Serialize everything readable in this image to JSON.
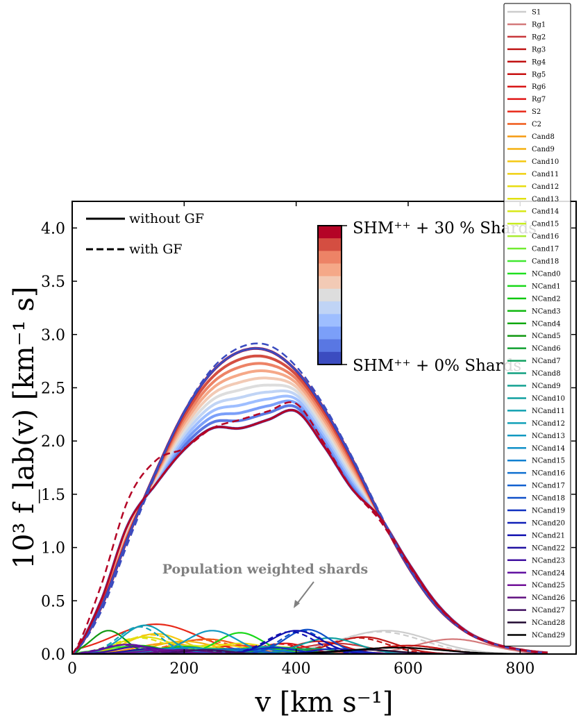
{
  "chart_data": {
    "type": "line",
    "xlabel": "v [km s⁻¹]",
    "ylabel": "10³ f_lab(v) [km⁻¹ s]",
    "xlim": [
      0,
      900
    ],
    "ylim": [
      0,
      4.25
    ],
    "xticks": [
      "0",
      "200",
      "400",
      "600",
      "800"
    ],
    "yticks": [
      "0.0",
      "0.5",
      "1.0",
      "1.5",
      "2.0",
      "2.5",
      "3.0",
      "3.5",
      "4.0"
    ],
    "linestyle_legend": [
      "without GF",
      "with GF"
    ],
    "colorbar": {
      "top_label": "SHM⁺⁺ + 30 % Shards",
      "bottom_label": "SHM⁺⁺ + 0% Shards",
      "colors": [
        "#b40426",
        "#d44e41",
        "#ed8366",
        "#f5a888",
        "#f2cab5",
        "#dddddd",
        "#c0d4f5",
        "#9ebeff",
        "#7b9ff9",
        "#5977e3",
        "#3b4cc0"
      ]
    },
    "annotation": "Population weighted shards",
    "shm_profile": {
      "x": [
        0,
        50,
        100,
        150,
        200,
        250,
        300,
        350,
        400,
        450,
        500,
        550,
        600,
        650,
        700,
        750,
        800,
        850
      ],
      "values_0pct": [
        0,
        0.42,
        1.1,
        1.72,
        2.27,
        2.65,
        2.84,
        2.85,
        2.66,
        2.3,
        1.83,
        1.3,
        0.82,
        0.45,
        0.22,
        0.1,
        0.04,
        0.01
      ],
      "values_30pct": [
        0,
        0.48,
        1.22,
        1.6,
        1.92,
        2.12,
        2.12,
        2.2,
        2.28,
        1.95,
        1.55,
        1.28,
        0.86,
        0.48,
        0.23,
        0.1,
        0.04,
        0.01
      ],
      "values_gf_0pct": [
        0,
        0.38,
        1.05,
        1.7,
        2.28,
        2.68,
        2.88,
        2.9,
        2.7,
        2.33,
        1.85,
        1.32,
        0.83,
        0.45,
        0.22,
        0.1,
        0.04,
        0.01
      ],
      "values_gf_30pct": [
        0,
        0.62,
        1.45,
        1.82,
        1.93,
        2.12,
        2.2,
        2.28,
        2.35,
        1.98,
        1.55,
        1.25,
        0.84,
        0.47,
        0.22,
        0.1,
        0.04,
        0.01
      ]
    },
    "shard_series": [
      {
        "name": "S1",
        "color": "#cccccc",
        "peak_v": 560,
        "peak": 0.22,
        "width": 80
      },
      {
        "name": "Rg1",
        "color": "#d4797a",
        "peak_v": 680,
        "peak": 0.14,
        "width": 65
      },
      {
        "name": "Rg2",
        "color": "#c8363a",
        "peak_v": 470,
        "peak": 0.1,
        "width": 60
      },
      {
        "name": "Rg3",
        "color": "#c01818",
        "peak_v": 520,
        "peak": 0.16,
        "width": 55
      },
      {
        "name": "Rg4",
        "color": "#c01010",
        "peak_v": 600,
        "peak": 0.08,
        "width": 60
      },
      {
        "name": "Rg5",
        "color": "#c81010",
        "peak_v": 440,
        "peak": 0.12,
        "width": 45
      },
      {
        "name": "Rg6",
        "color": "#d81414",
        "peak_v": 380,
        "peak": 0.1,
        "width": 40
      },
      {
        "name": "Rg7",
        "color": "#e01818",
        "peak_v": 300,
        "peak": 0.08,
        "width": 60
      },
      {
        "name": "S2",
        "color": "#e82818",
        "peak_v": 150,
        "peak": 0.28,
        "width": 75
      },
      {
        "name": "C2",
        "color": "#f05a18",
        "peak_v": 240,
        "peak": 0.14,
        "width": 60
      },
      {
        "name": "Cand8",
        "color": "#f59a10",
        "peak_v": 170,
        "peak": 0.1,
        "width": 55
      },
      {
        "name": "Cand9",
        "color": "#f5b010",
        "peak_v": 200,
        "peak": 0.12,
        "width": 55
      },
      {
        "name": "Cand10",
        "color": "#f5c810",
        "peak_v": 150,
        "peak": 0.19,
        "width": 50
      },
      {
        "name": "Cand11",
        "color": "#f0d010",
        "peak_v": 260,
        "peak": 0.09,
        "width": 50
      },
      {
        "name": "Cand12",
        "color": "#e8dc10",
        "peak_v": 300,
        "peak": 0.1,
        "width": 50
      },
      {
        "name": "Cand13",
        "color": "#e0e010",
        "peak_v": 130,
        "peak": 0.16,
        "width": 50
      },
      {
        "name": "Cand14",
        "color": "#d8e818",
        "peak_v": 360,
        "peak": 0.07,
        "width": 50
      },
      {
        "name": "Cand15",
        "color": "#c8ec20",
        "peak_v": 210,
        "peak": 0.08,
        "width": 50
      },
      {
        "name": "Cand16",
        "color": "#a8ec30",
        "peak_v": 180,
        "peak": 0.06,
        "width": 50
      },
      {
        "name": "Cand17",
        "color": "#70ec30",
        "peak_v": 230,
        "peak": 0.05,
        "width": 50
      },
      {
        "name": "Cand18",
        "color": "#40e830",
        "peak_v": 100,
        "peak": 0.07,
        "width": 50
      },
      {
        "name": "NCand0",
        "color": "#20e020",
        "peak_v": 330,
        "peak": 0.06,
        "width": 45
      },
      {
        "name": "NCand1",
        "color": "#18d818",
        "peak_v": 300,
        "peak": 0.2,
        "width": 40
      },
      {
        "name": "NCand2",
        "color": "#10c810",
        "peak_v": 120,
        "peak": 0.08,
        "width": 40
      },
      {
        "name": "NCand3",
        "color": "#10b810",
        "peak_v": 200,
        "peak": 0.07,
        "width": 45
      },
      {
        "name": "NCand4",
        "color": "#10a810",
        "peak_v": 270,
        "peak": 0.05,
        "width": 45
      },
      {
        "name": "NCand5",
        "color": "#109810",
        "peak_v": 65,
        "peak": 0.22,
        "width": 30
      },
      {
        "name": "NCand6",
        "color": "#10a030",
        "peak_v": 380,
        "peak": 0.06,
        "width": 40
      },
      {
        "name": "NCand7",
        "color": "#10a060",
        "peak_v": 430,
        "peak": 0.05,
        "width": 45
      },
      {
        "name": "NCand8",
        "color": "#10a080",
        "peak_v": 160,
        "peak": 0.05,
        "width": 45
      },
      {
        "name": "NCand9",
        "color": "#10a090",
        "peak_v": 250,
        "peak": 0.05,
        "width": 45
      },
      {
        "name": "NCand10",
        "color": "#10a0a0",
        "peak_v": 460,
        "peak": 0.15,
        "width": 50
      },
      {
        "name": "NCand11",
        "color": "#10a0b0",
        "peak_v": 350,
        "peak": 0.07,
        "width": 45
      },
      {
        "name": "NCand12",
        "color": "#10a0b8",
        "peak_v": 130,
        "peak": 0.27,
        "width": 40
      },
      {
        "name": "NCand13",
        "color": "#1098c0",
        "peak_v": 250,
        "peak": 0.22,
        "width": 45
      },
      {
        "name": "NCand14",
        "color": "#1090c8",
        "peak_v": 210,
        "peak": 0.06,
        "width": 40
      },
      {
        "name": "NCand15",
        "color": "#1080d0",
        "peak_v": 180,
        "peak": 0.05,
        "width": 40
      },
      {
        "name": "NCand16",
        "color": "#1070d0",
        "peak_v": 330,
        "peak": 0.05,
        "width": 40
      },
      {
        "name": "NCand17",
        "color": "#1060d0",
        "peak_v": 290,
        "peak": 0.05,
        "width": 40
      },
      {
        "name": "NCand18",
        "color": "#1050c8",
        "peak_v": 420,
        "peak": 0.23,
        "width": 40
      },
      {
        "name": "NCand19",
        "color": "#1030c0",
        "peak_v": 360,
        "peak": 0.06,
        "width": 40
      },
      {
        "name": "NCand20",
        "color": "#1020b8",
        "peak_v": 470,
        "peak": 0.05,
        "width": 40
      },
      {
        "name": "NCand21",
        "color": "#1010b0",
        "peak_v": 400,
        "peak": 0.22,
        "width": 45
      },
      {
        "name": "NCand22",
        "color": "#2010a0",
        "peak_v": 140,
        "peak": 0.05,
        "width": 40
      },
      {
        "name": "NCand23",
        "color": "#4010a0",
        "peak_v": 120,
        "peak": 0.07,
        "width": 40
      },
      {
        "name": "NCand24",
        "color": "#6010a0",
        "peak_v": 100,
        "peak": 0.09,
        "width": 40
      },
      {
        "name": "NCand25",
        "color": "#701098",
        "peak_v": 160,
        "peak": 0.04,
        "width": 40
      },
      {
        "name": "NCand26",
        "color": "#601080",
        "peak_v": 200,
        "peak": 0.04,
        "width": 40
      },
      {
        "name": "NCand27",
        "color": "#401060",
        "peak_v": 240,
        "peak": 0.04,
        "width": 40
      },
      {
        "name": "NCand28",
        "color": "#200830",
        "peak_v": 520,
        "peak": 0.04,
        "width": 60
      },
      {
        "name": "NCand29",
        "color": "#000000",
        "peak_v": 580,
        "peak": 0.06,
        "width": 80
      }
    ]
  }
}
